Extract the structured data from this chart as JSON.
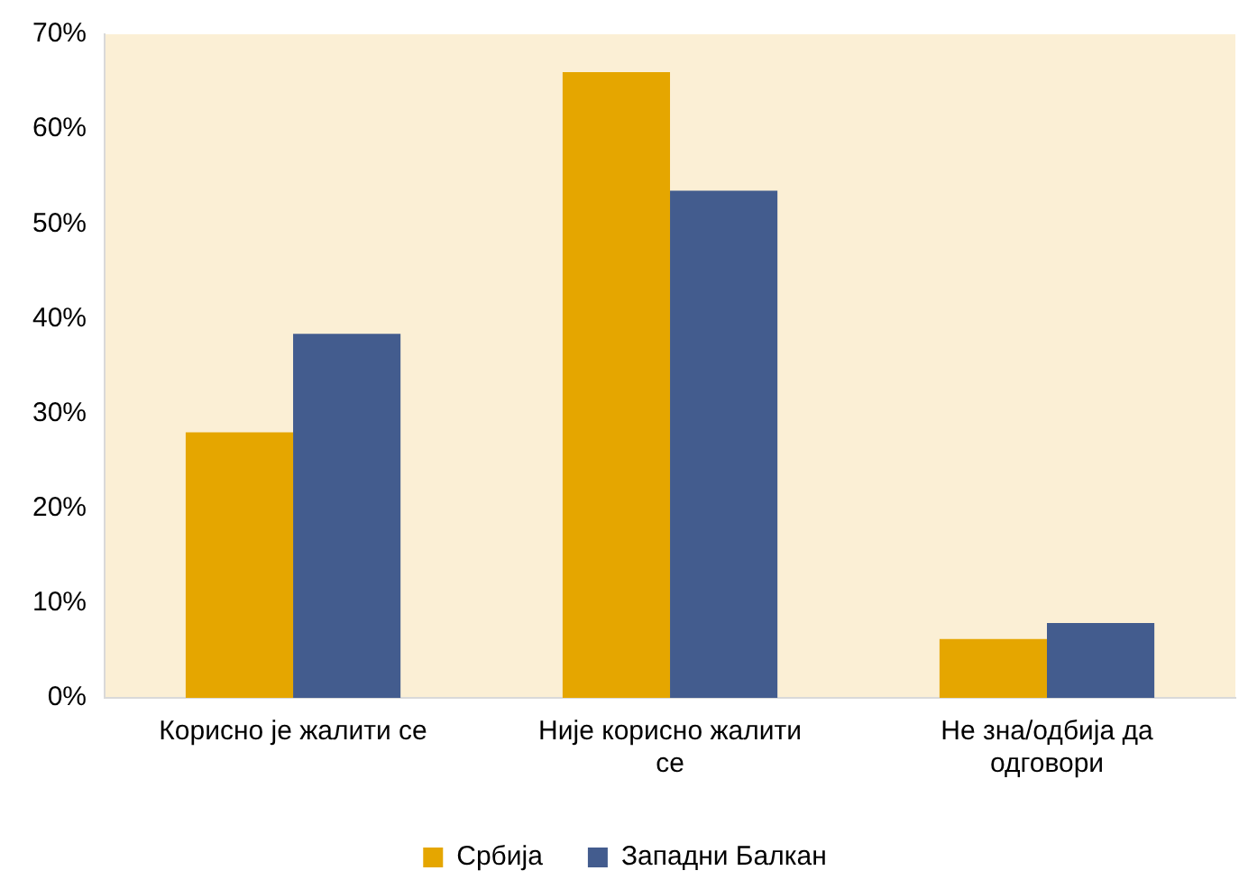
{
  "chart_data": {
    "type": "bar",
    "categories": [
      "Корисно је жалити се",
      "Није корисно жалити се",
      "Не зна/одбија да одговори"
    ],
    "series": [
      {
        "name": "Србија",
        "color": "#e5a600",
        "values": [
          28,
          66,
          6.2
        ]
      },
      {
        "name": "Западни Балкан",
        "color": "#435c8e",
        "values": [
          38.4,
          53.5,
          7.9
        ]
      }
    ],
    "ylim": [
      0,
      70
    ],
    "yticks": [
      {
        "value": 0,
        "label": "0%"
      },
      {
        "value": 10,
        "label": "10%"
      },
      {
        "value": 20,
        "label": "20%"
      },
      {
        "value": 30,
        "label": "30%"
      },
      {
        "value": 40,
        "label": "40%"
      },
      {
        "value": 50,
        "label": "50%"
      },
      {
        "value": 60,
        "label": "60%"
      },
      {
        "value": 70,
        "label": "70%"
      }
    ],
    "grid": false,
    "legend": "bottom"
  }
}
